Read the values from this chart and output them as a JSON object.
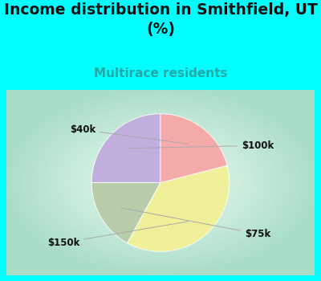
{
  "title": "Income distribution in Smithfield, UT\n(%)",
  "subtitle": "Multirace residents",
  "slices": [
    {
      "label": "$100k",
      "value": 25,
      "color": "#c0aedd"
    },
    {
      "label": "$75k",
      "value": 17,
      "color": "#b8ccaa"
    },
    {
      "label": "$150k",
      "value": 37,
      "color": "#f0f09a"
    },
    {
      "label": "$40k",
      "value": 21,
      "color": "#f5aaaa"
    }
  ],
  "start_angle": 90,
  "bg_cyan": "#00ffff",
  "chart_bg_center": "#f0faf8",
  "chart_bg_edge": "#aaddc8",
  "title_fontsize": 13.5,
  "subtitle_fontsize": 11,
  "subtitle_color": "#22aaaa",
  "label_fontsize": 8.5,
  "label_color": "#111111"
}
